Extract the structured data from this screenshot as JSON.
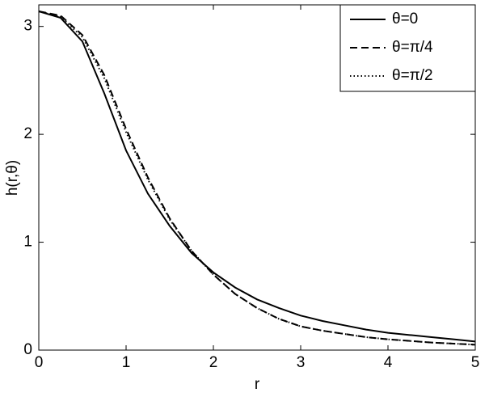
{
  "chart_data": {
    "type": "line",
    "xlabel": "r",
    "ylabel": "h(r,θ)",
    "x": [
      0,
      0.25,
      0.5,
      0.75,
      1,
      1.25,
      1.5,
      1.75,
      2,
      2.25,
      2.5,
      2.75,
      3,
      3.25,
      3.5,
      3.75,
      4,
      4.25,
      4.5,
      4.75,
      5
    ],
    "series": [
      {
        "name": "θ=0",
        "color": "#000000",
        "linestyle": "solid",
        "values": [
          3.14,
          3.08,
          2.86,
          2.38,
          1.85,
          1.45,
          1.15,
          0.9,
          0.72,
          0.58,
          0.47,
          0.39,
          0.32,
          0.27,
          0.23,
          0.19,
          0.16,
          0.14,
          0.12,
          0.1,
          0.08
        ]
      },
      {
        "name": "θ=π/4",
        "color": "#000000",
        "linestyle": "dashed",
        "values": [
          3.14,
          3.1,
          2.92,
          2.55,
          2.05,
          1.6,
          1.22,
          0.92,
          0.7,
          0.52,
          0.39,
          0.29,
          0.22,
          0.18,
          0.15,
          0.12,
          0.1,
          0.085,
          0.07,
          0.06,
          0.05
        ]
      },
      {
        "name": "θ=π/2",
        "color": "#000000",
        "linestyle": "dotted",
        "values": [
          3.14,
          3.09,
          2.9,
          2.52,
          2.02,
          1.58,
          1.21,
          0.92,
          0.7,
          0.52,
          0.39,
          0.29,
          0.22,
          0.18,
          0.15,
          0.12,
          0.1,
          0.085,
          0.07,
          0.06,
          0.05
        ]
      }
    ],
    "xlim": [
      0,
      5
    ],
    "xticks": [
      0,
      1,
      2,
      3,
      4,
      5
    ],
    "ylim": [
      0,
      3.2
    ],
    "yticks": [
      0,
      1,
      2,
      3
    ],
    "grid": false,
    "legend": "top-right"
  }
}
